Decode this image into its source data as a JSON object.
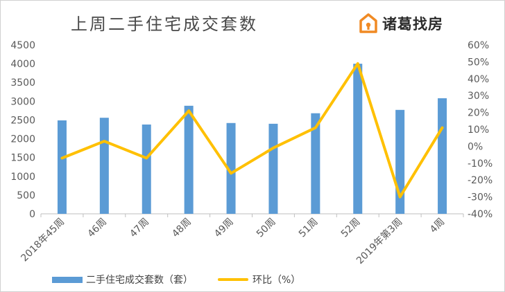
{
  "header": {
    "title": "上周二手住宅成交套数",
    "logo_text": "诸葛找房"
  },
  "colors": {
    "bars": "#5b9bd5",
    "line": "#ffc000",
    "axis_text": "#595959",
    "axis_line": "#bfbfbf"
  },
  "chart_data": {
    "type": "bar",
    "title": "上周二手住宅成交套数",
    "categories": [
      "2018年45周",
      "46周",
      "47周",
      "48周",
      "49周",
      "50周",
      "51周",
      "52周",
      "2019年第3周",
      "4周"
    ],
    "series": [
      {
        "name": "二手住宅成交套数（套）",
        "type": "bar",
        "axis": "left",
        "values": [
          2490,
          2560,
          2380,
          2880,
          2420,
          2400,
          2680,
          4000,
          2770,
          3080
        ]
      },
      {
        "name": "环比（%）",
        "type": "line",
        "axis": "right",
        "values": [
          -7,
          3,
          -7,
          21,
          -16,
          -1,
          11,
          49,
          -30,
          11
        ]
      }
    ],
    "y_left": {
      "min": 0,
      "max": 4500,
      "step": 500,
      "ticks": [
        "0",
        "500",
        "1000",
        "1500",
        "2000",
        "2500",
        "3000",
        "3500",
        "4000",
        "4500"
      ]
    },
    "y_right": {
      "min": -40,
      "max": 60,
      "step": 10,
      "ticks": [
        "-40%",
        "-30%",
        "-20%",
        "-10%",
        "0%",
        "10%",
        "20%",
        "30%",
        "40%",
        "50%",
        "60%"
      ]
    },
    "grid": false,
    "legend": "bottom"
  }
}
